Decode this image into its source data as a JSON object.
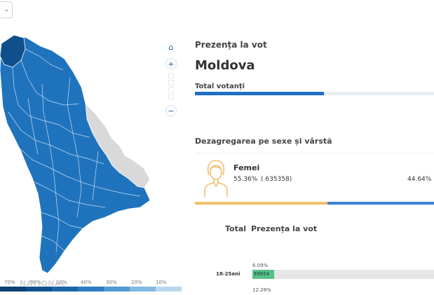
{
  "colors": {
    "map_fill": "#1f73bd",
    "map_dark": "#0f4f8c",
    "map_light_gray": "#d9d9d9",
    "total_bar": "#1f6fc5",
    "female_bar": "#f2bf6b",
    "male_bar": "#3f7fd9",
    "age_bar": "#58c08a"
  },
  "icons": {
    "dropdown": "chevron-down-icon",
    "home": "home-icon",
    "zoom_in": "plus-icon",
    "zoom_out": "minus-icon",
    "woman": "woman-icon"
  },
  "dropdown": {
    "glyph": "⌄"
  },
  "map_controls": {
    "home_glyph": "⌂",
    "zoom_in_glyph": "+",
    "zoom_out_glyph": "−"
  },
  "legend": {
    "labels": [
      "70%",
      "60%",
      "50%",
      "40%",
      "30%",
      "20%",
      "10%"
    ],
    "colors": [
      "#0c3f73",
      "#11508f",
      "#1a64aa",
      "#2a7dc2",
      "#4f9ad2",
      "#82b9e0",
      "#b9d8ef"
    ]
  },
  "watermark": "NATIONAL",
  "panel": {
    "turnout_heading": "Prezența la vot",
    "region_name": "Moldova",
    "total_label": "Total votanți",
    "total_fraction": 0.54,
    "breakdown_heading": "Dezagregarea pe sexe și vârstă",
    "female": {
      "label": "Femei",
      "percent": "55.36%",
      "count": "( 635358)",
      "fraction": 0.5536
    },
    "male": {
      "percent": "44.64%"
    },
    "columns": {
      "total": "Total",
      "turnout": "Prezența la vot"
    },
    "age_rows": [
      {
        "label": "18-25ani",
        "pct_top": "6.09%",
        "count": "69854",
        "pct_bottom": "12.28%",
        "fraction": 0.12
      }
    ]
  }
}
